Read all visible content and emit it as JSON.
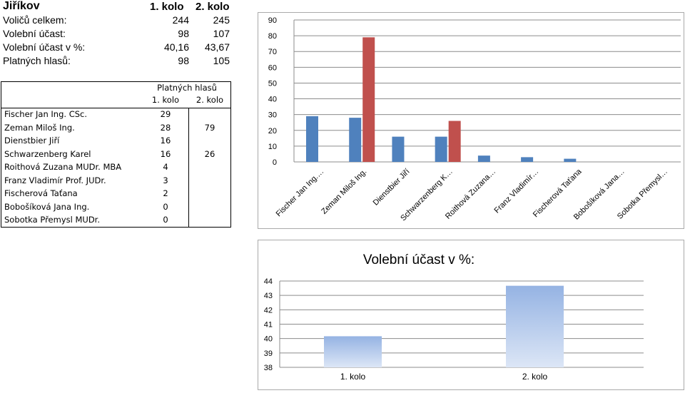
{
  "page": {
    "title": "Jiříkov",
    "round1_header": "1. kolo",
    "round2_header": "2. kolo"
  },
  "stats": [
    {
      "label": "Voličů celkem:",
      "r1": "244",
      "r2": "245"
    },
    {
      "label": "Volební účast:",
      "r1": "98",
      "r2": "107"
    },
    {
      "label": "Volební účast v %:",
      "r1": "40,16",
      "r2": "43,67"
    },
    {
      "label": "Platných hlasů:",
      "r1": "98",
      "r2": "105"
    }
  ],
  "candidates_table": {
    "header": "Platných hlasů",
    "col1": "1. kolo",
    "col2": "2. kolo",
    "rows": [
      {
        "name": "Fischer Jan Ing. CSc.",
        "r1": "29",
        "r2": ""
      },
      {
        "name": "Zeman Miloš Ing.",
        "r1": "28",
        "r2": "79"
      },
      {
        "name": "Dienstbier Jiří",
        "r1": "16",
        "r2": ""
      },
      {
        "name": "Schwarzenberg Karel",
        "r1": "16",
        "r2": "26"
      },
      {
        "name": "Roithová Zuzana MUDr. MBA",
        "r1": "4",
        "r2": ""
      },
      {
        "name": "Franz Vladimír Prof. JUDr.",
        "r1": "3",
        "r2": ""
      },
      {
        "name": "Fischerová Taťana",
        "r1": "2",
        "r2": ""
      },
      {
        "name": "Bobošíková Jana Ing.",
        "r1": "0",
        "r2": ""
      },
      {
        "name": "Sobotka Přemysl MUDr.",
        "r1": "0",
        "r2": ""
      }
    ]
  },
  "chart_data": [
    {
      "type": "bar",
      "title": "",
      "xlabel": "",
      "ylabel": "",
      "ylim": [
        0,
        90
      ],
      "yticks": [
        0,
        10,
        20,
        30,
        40,
        50,
        60,
        70,
        80,
        90
      ],
      "grid": true,
      "categories": [
        "Fischer Jan Ing.…",
        "Zeman Miloš Ing.",
        "Dienstbier Jiří",
        "Schwarzenberg K…",
        "Roithová Zuzana…",
        "Franz Vladimír…",
        "Fischerová Taťana",
        "Bobošíková Jana…",
        "Sobotka Přemysl…"
      ],
      "series": [
        {
          "values": [
            29,
            28,
            16,
            16,
            4,
            3,
            2,
            0,
            0
          ],
          "color": "#4f81bd"
        },
        {
          "values": [
            null,
            79,
            null,
            26,
            null,
            null,
            null,
            null,
            null
          ],
          "color": "#c0504d"
        }
      ]
    },
    {
      "type": "bar",
      "title": "Volební účast v %:",
      "xlabel": "",
      "ylabel": "",
      "ylim": [
        38,
        44
      ],
      "yticks": [
        38,
        39,
        40,
        41,
        42,
        43,
        44
      ],
      "grid": true,
      "categories": [
        "1. kolo",
        "2. kolo"
      ],
      "values": [
        40.16,
        43.67
      ],
      "color": "#95b3e3"
    }
  ]
}
